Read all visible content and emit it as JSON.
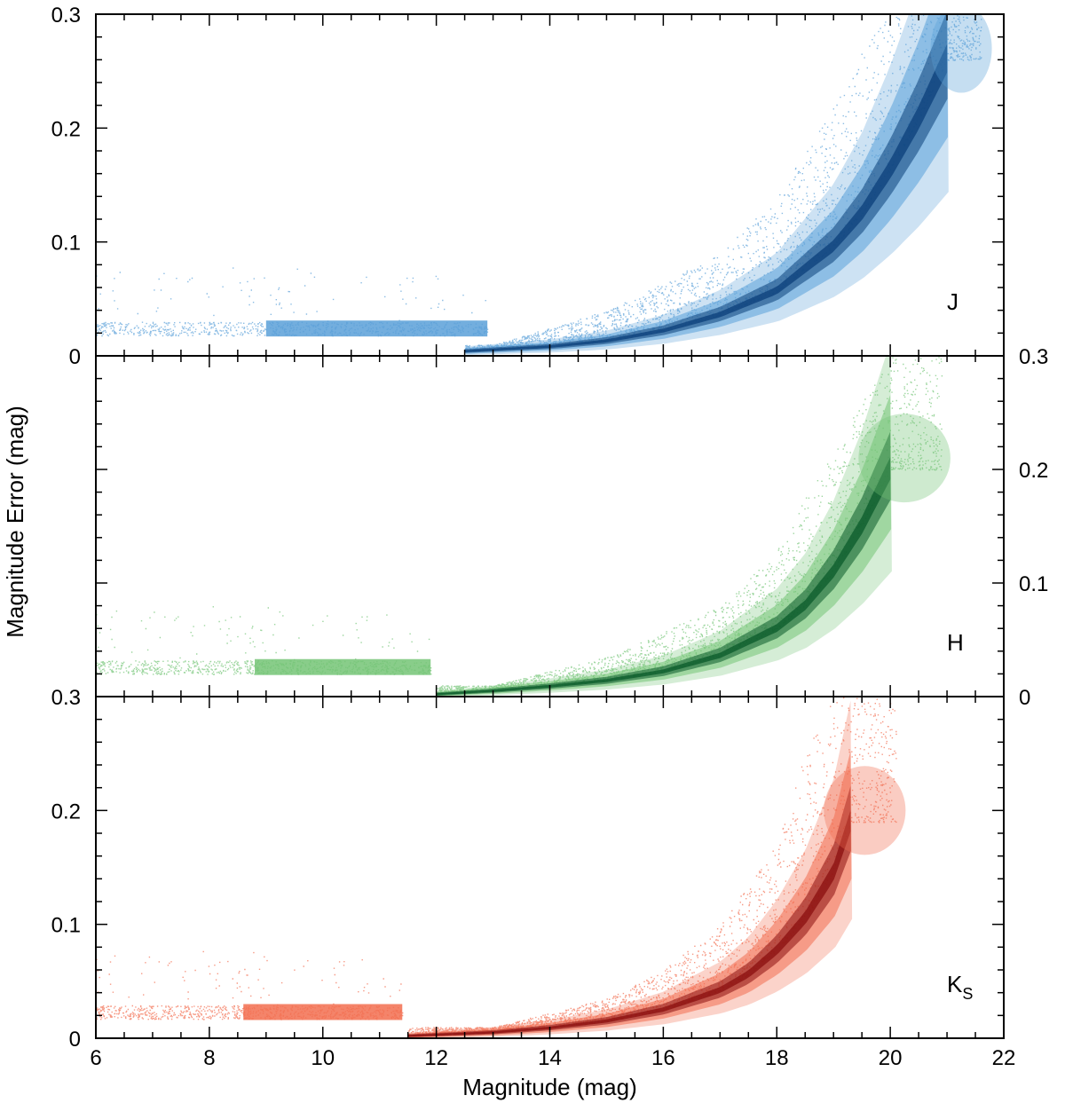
{
  "chart_data": [
    {
      "type": "scatter",
      "band": "J",
      "band_sub": "",
      "ytick_labels": [
        "0",
        "0.1",
        "0.2",
        "0.3"
      ],
      "ytick_side": "left",
      "xlim": [
        6,
        22
      ],
      "ylim": [
        0,
        0.3
      ],
      "color": "#5aa0d8",
      "dark_color": "#0b3f7a",
      "series": [
        {
          "name": "bright flat branch",
          "x_range": [
            6.0,
            12.9
          ],
          "y_level": 0.024,
          "dense_segment_x": [
            9.0,
            12.9
          ]
        },
        {
          "name": "ridge (median error)",
          "x": [
            12.5,
            14,
            15,
            16,
            17,
            18,
            19,
            19.5,
            20,
            20.5,
            21.0
          ],
          "y": [
            0.004,
            0.008,
            0.013,
            0.022,
            0.036,
            0.057,
            0.096,
            0.125,
            0.163,
            0.208,
            0.26
          ]
        },
        {
          "name": "upper envelope",
          "x": [
            13,
            15,
            17,
            18,
            19,
            19.5,
            20,
            21
          ],
          "y": [
            0.01,
            0.04,
            0.09,
            0.14,
            0.22,
            0.27,
            0.3,
            0.3
          ]
        }
      ],
      "max_x": 21.6
    },
    {
      "type": "scatter",
      "band": "H",
      "band_sub": "",
      "ytick_labels": [
        "0",
        "0.1",
        "0.2",
        "0.3"
      ],
      "ytick_side": "right",
      "xlim": [
        6,
        22
      ],
      "ylim": [
        0,
        0.3
      ],
      "color": "#74c476",
      "dark_color": "#0a5a2a",
      "series": [
        {
          "name": "bright flat branch",
          "x_range": [
            6.0,
            11.9
          ],
          "y_level": 0.026,
          "dense_segment_x": [
            8.8,
            11.9
          ]
        },
        {
          "name": "ridge (median error)",
          "x": [
            12.0,
            13,
            14,
            15,
            16,
            17,
            18,
            18.5,
            19,
            19.5,
            20.0
          ],
          "y": [
            0.002,
            0.005,
            0.009,
            0.014,
            0.022,
            0.036,
            0.06,
            0.08,
            0.11,
            0.15,
            0.2
          ]
        },
        {
          "name": "upper envelope",
          "x": [
            13,
            15,
            17,
            18,
            19,
            20
          ],
          "y": [
            0.01,
            0.035,
            0.08,
            0.13,
            0.22,
            0.3
          ]
        }
      ],
      "max_x": 20.9
    },
    {
      "type": "scatter",
      "band": "K",
      "band_sub": "S",
      "ytick_labels": [
        "0",
        "0.1",
        "0.2",
        "0.3"
      ],
      "ytick_side": "left",
      "xlim": [
        6,
        22
      ],
      "ylim": [
        0,
        0.3
      ],
      "xlabel": "Magnitude (mag)",
      "xtick_labels": [
        "6",
        "8",
        "10",
        "12",
        "14",
        "16",
        "18",
        "20",
        "22"
      ],
      "color": "#f26e50",
      "dark_color": "#8a0f0f",
      "series": [
        {
          "name": "bright flat branch",
          "x_range": [
            6.0,
            11.4
          ],
          "y_level": 0.023,
          "dense_segment_x": [
            8.6,
            11.4
          ]
        },
        {
          "name": "ridge (median error)",
          "x": [
            11.5,
            13,
            14,
            15,
            16,
            17,
            17.5,
            18,
            18.5,
            19.0,
            19.3
          ],
          "y": [
            0.002,
            0.005,
            0.009,
            0.015,
            0.025,
            0.042,
            0.056,
            0.077,
            0.105,
            0.145,
            0.19
          ]
        },
        {
          "name": "upper envelope",
          "x": [
            13,
            15,
            16,
            17,
            18,
            18.5,
            19
          ],
          "y": [
            0.01,
            0.035,
            0.06,
            0.1,
            0.17,
            0.25,
            0.3
          ]
        }
      ],
      "max_x": 20.1
    }
  ],
  "ylabel": "Magnitude Error (mag)"
}
